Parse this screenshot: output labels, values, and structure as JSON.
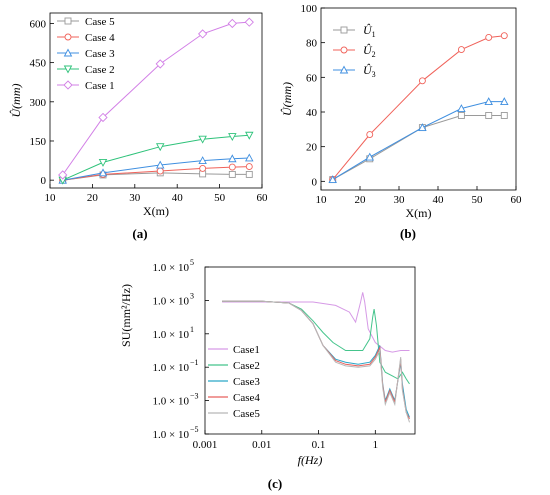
{
  "panel_labels": [
    "(a)",
    "(b)",
    "(c)"
  ],
  "chart_data": [
    {
      "type": "line",
      "panel": "(a)",
      "xlabel": "X(m)",
      "ylabel": "Û(mm)",
      "xlim": [
        10,
        60
      ],
      "ylim": [
        -30,
        640
      ],
      "xticks": [
        10,
        20,
        30,
        40,
        50,
        60
      ],
      "yticks": [
        0,
        150,
        300,
        450,
        600
      ],
      "grid": false,
      "legend_position": "top-left",
      "series": [
        {
          "name": "Case 5",
          "color": "#9a9a9a",
          "marker": "square",
          "x": [
            13,
            22.5,
            36,
            46,
            53,
            57
          ],
          "y": [
            0,
            20,
            28,
            24,
            22,
            22
          ]
        },
        {
          "name": "Case 4",
          "color": "#f0625a",
          "marker": "circle",
          "x": [
            13,
            22.5,
            36,
            46,
            53,
            57
          ],
          "y": [
            0,
            22,
            35,
            45,
            50,
            52
          ]
        },
        {
          "name": "Case 3",
          "color": "#3f8fe0",
          "marker": "triangle-up",
          "x": [
            13,
            22.5,
            36,
            46,
            53,
            57
          ],
          "y": [
            0,
            28,
            58,
            75,
            82,
            85
          ]
        },
        {
          "name": "Case 2",
          "color": "#2ec27a",
          "marker": "triangle-down",
          "x": [
            13,
            22.5,
            36,
            46,
            53,
            57
          ],
          "y": [
            0,
            68,
            128,
            157,
            167,
            172
          ]
        },
        {
          "name": "Case 1",
          "color": "#d27fe6",
          "marker": "diamond",
          "x": [
            13,
            22.5,
            36,
            46,
            53,
            57
          ],
          "y": [
            20,
            240,
            445,
            560,
            600,
            605
          ]
        }
      ]
    },
    {
      "type": "line",
      "panel": "(b)",
      "xlabel": "X(m)",
      "ylabel": "Û(mm)",
      "xlim": [
        10,
        60
      ],
      "ylim": [
        -5,
        100
      ],
      "xticks": [
        10,
        20,
        30,
        40,
        50,
        60
      ],
      "yticks": [
        0,
        20,
        40,
        60,
        80,
        100
      ],
      "grid": false,
      "legend_position": "top-left",
      "series": [
        {
          "name": "Û1",
          "color": "#9a9a9a",
          "marker": "square",
          "x": [
            13,
            22.5,
            36,
            46,
            53,
            57
          ],
          "y": [
            1,
            13,
            31,
            38,
            38,
            38
          ]
        },
        {
          "name": "Û2",
          "color": "#f0625a",
          "marker": "circle",
          "x": [
            13,
            22.5,
            36,
            46,
            53,
            57
          ],
          "y": [
            1,
            27,
            58,
            76,
            83,
            84
          ]
        },
        {
          "name": "Û3",
          "color": "#3f8fe0",
          "marker": "triangle-up",
          "x": [
            13,
            22.5,
            36,
            46,
            53,
            57
          ],
          "y": [
            1,
            14,
            31,
            42,
            46,
            46
          ]
        }
      ]
    },
    {
      "type": "line",
      "panel": "(c)",
      "xlabel": "f(Hz)",
      "ylabel": "SU(mm²/Hz)",
      "xscale": "log",
      "yscale": "log",
      "xlim": [
        0.001,
        5
      ],
      "ylim": [
        1e-05,
        100000
      ],
      "xticks": [
        0.001,
        0.01,
        0.1,
        1
      ],
      "xticklabels": [
        "0.001",
        "0.01",
        "0.1",
        "1"
      ],
      "yticks": [
        1e-05,
        0.001,
        0.1,
        10,
        1000,
        100000
      ],
      "yticklabels": [
        "1.0 × 10",
        "1.0 × 10",
        "1.0 × 10",
        "1.0 × 10",
        "1.0 × 10",
        "1.0 × 10"
      ],
      "yticksup": [
        "−5",
        "−3",
        "−1",
        "1",
        "3",
        "5"
      ],
      "grid": false,
      "legend_position": "bottom-left",
      "series": [
        {
          "name": "Case1",
          "color": "#d69ae6",
          "x": [
            0.002,
            0.01,
            0.03,
            0.08,
            0.2,
            0.35,
            0.45,
            0.55,
            0.6,
            0.65,
            0.75,
            1.0,
            1.5,
            2.0,
            2.8,
            3.5,
            4.0
          ],
          "y": [
            800,
            800,
            800,
            800,
            500,
            200,
            50,
            800,
            3000,
            800,
            20,
            3,
            1,
            0.8,
            1,
            1,
            1
          ]
        },
        {
          "name": "Case2",
          "color": "#45c48c",
          "x": [
            0.002,
            0.01,
            0.03,
            0.05,
            0.08,
            0.12,
            0.18,
            0.3,
            0.6,
            0.8,
            0.9,
            0.95,
            1.05,
            1.2,
            1.5,
            2.0,
            2.5,
            3.0,
            3.5,
            4.0
          ],
          "y": [
            900,
            900,
            700,
            300,
            60,
            12,
            3,
            1,
            1,
            5,
            100,
            300,
            30,
            0.2,
            0.05,
            0.03,
            0.02,
            0.05,
            0.02,
            0.01
          ]
        },
        {
          "name": "Case3",
          "color": "#2aa6c8",
          "x": [
            0.002,
            0.01,
            0.03,
            0.05,
            0.08,
            0.12,
            0.2,
            0.3,
            0.5,
            0.8,
            1.0,
            1.2,
            1.35,
            1.5,
            1.8,
            2.2,
            2.8,
            3.0,
            3.5,
            4.0
          ],
          "y": [
            900,
            900,
            700,
            250,
            40,
            2,
            0.3,
            0.2,
            0.15,
            0.2,
            0.5,
            2,
            0.01,
            0.001,
            0.005,
            0.001,
            0.2,
            0.01,
            0.0003,
            0.0001
          ]
        },
        {
          "name": "Case4",
          "color": "#e8625e",
          "x": [
            0.002,
            0.01,
            0.03,
            0.05,
            0.08,
            0.12,
            0.2,
            0.3,
            0.5,
            0.8,
            1.0,
            1.2,
            1.35,
            1.5,
            1.8,
            2.2,
            2.8,
            3.0,
            3.5,
            4.0
          ],
          "y": [
            900,
            900,
            700,
            250,
            40,
            2,
            0.25,
            0.15,
            0.12,
            0.15,
            0.4,
            1.5,
            0.008,
            0.0008,
            0.004,
            0.0008,
            0.3,
            0.005,
            0.0002,
            8e-05
          ]
        },
        {
          "name": "Case5",
          "color": "#b8b8b8",
          "x": [
            0.002,
            0.01,
            0.03,
            0.05,
            0.08,
            0.12,
            0.2,
            0.3,
            0.5,
            0.8,
            1.0,
            1.2,
            1.35,
            1.5,
            1.8,
            2.2,
            2.8,
            3.0,
            3.5,
            4.0
          ],
          "y": [
            900,
            900,
            700,
            250,
            40,
            2,
            0.2,
            0.12,
            0.1,
            0.12,
            0.3,
            1,
            0.006,
            0.0006,
            0.003,
            0.0006,
            0.4,
            0.004,
            0.0002,
            5e-05
          ]
        }
      ]
    }
  ]
}
